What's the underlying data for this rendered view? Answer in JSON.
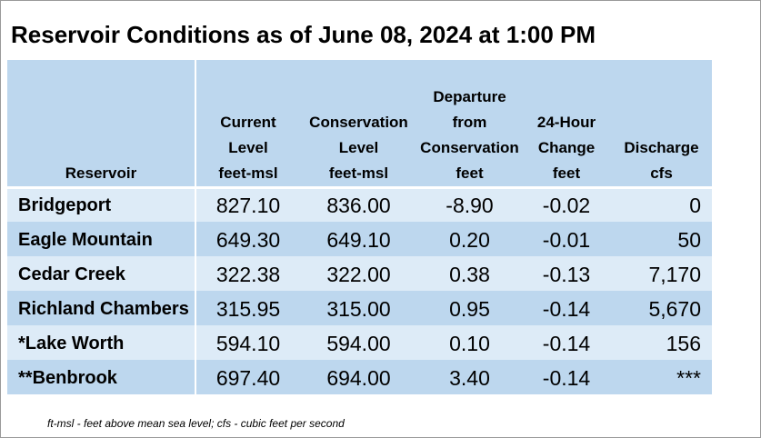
{
  "title": "Reservoir Conditions as of June 08, 2024 at 1:00 PM",
  "headers": [
    {
      "lines": [
        "Reservoir"
      ]
    },
    {
      "lines": [
        "Current",
        "Level",
        "feet-msl"
      ]
    },
    {
      "lines": [
        "Conservation",
        "Level",
        "feet-msl"
      ]
    },
    {
      "lines": [
        "Departure",
        "from",
        "Conservation",
        "feet"
      ]
    },
    {
      "lines": [
        "24-Hour",
        "Change",
        "feet"
      ]
    },
    {
      "lines": [
        "Discharge",
        "cfs"
      ]
    }
  ],
  "rows": [
    {
      "name": "Bridgeport",
      "current": "827.10",
      "conservation": "836.00",
      "departure": "-8.90",
      "change": "-0.02",
      "discharge": "0"
    },
    {
      "name": "Eagle Mountain",
      "current": "649.30",
      "conservation": "649.10",
      "departure": "0.20",
      "change": "-0.01",
      "discharge": "50"
    },
    {
      "name": "Cedar Creek",
      "current": "322.38",
      "conservation": "322.00",
      "departure": "0.38",
      "change": "-0.13",
      "discharge": "7,170"
    },
    {
      "name": "Richland Chambers",
      "current": "315.95",
      "conservation": "315.00",
      "departure": "0.95",
      "change": "-0.14",
      "discharge": "5,670"
    },
    {
      "name": "*Lake Worth",
      "current": "594.10",
      "conservation": "594.00",
      "departure": "0.10",
      "change": "-0.14",
      "discharge": "156"
    },
    {
      "name": "**Benbrook",
      "current": "697.40",
      "conservation": "694.00",
      "departure": "3.40",
      "change": "-0.14",
      "discharge": "***"
    }
  ],
  "footnote": "ft-msl - feet above mean sea level; cfs - cubic feet per second",
  "colors": {
    "header_bg": "#bdd7ee",
    "row_light": "#ddebf7",
    "row_dark": "#bdd7ee"
  }
}
